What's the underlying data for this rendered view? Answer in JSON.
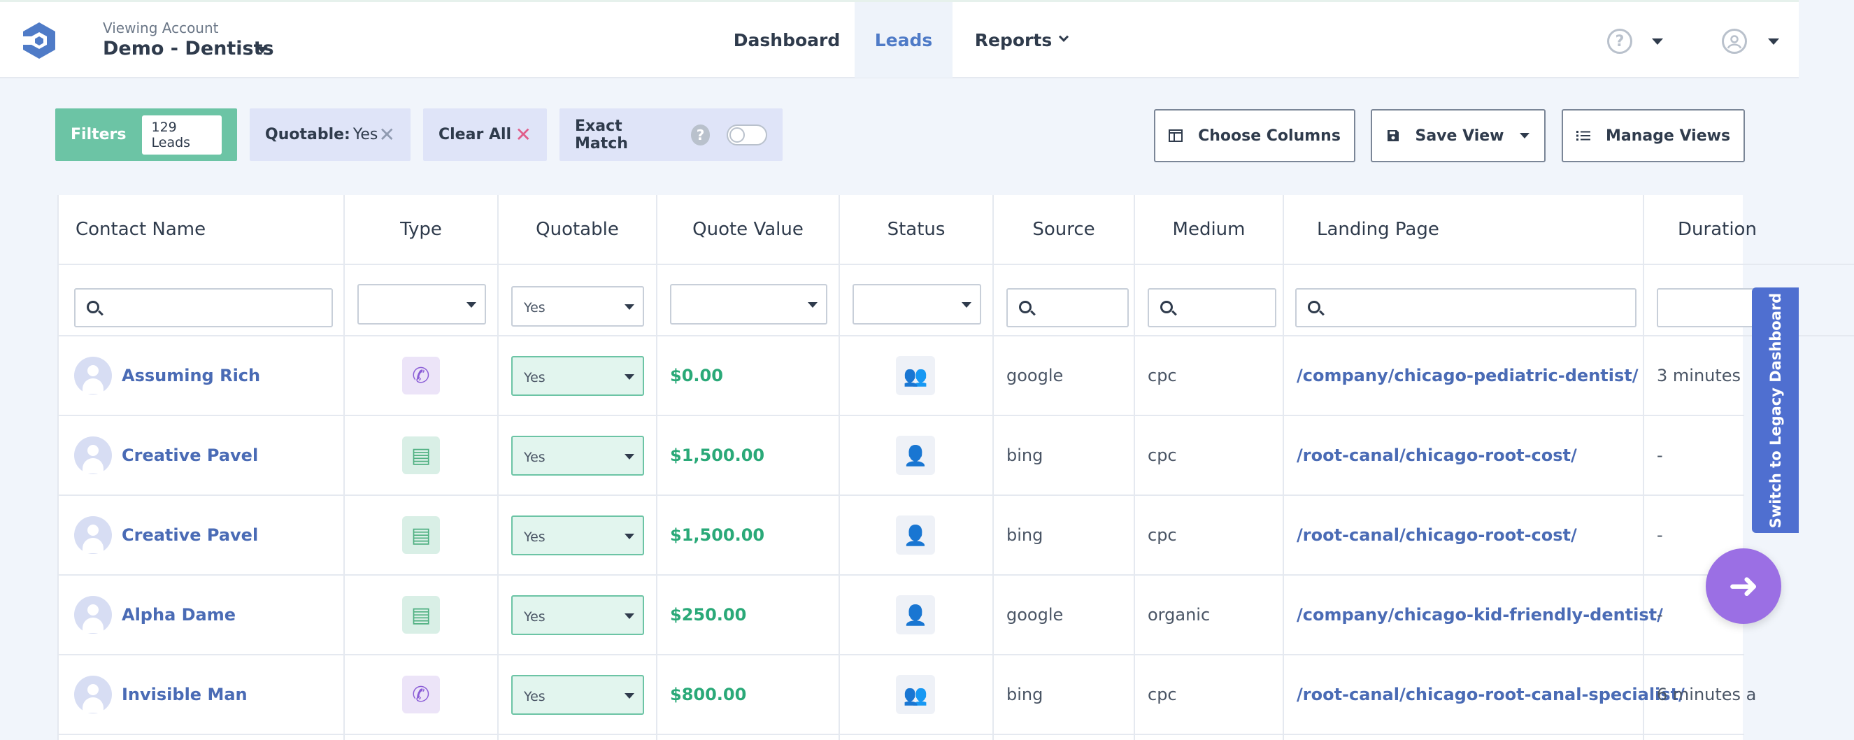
{
  "header": {
    "account_caption": "Viewing Account",
    "account_name": "Demo - Dentists",
    "nav": {
      "dashboard": "Dashboard",
      "leads": "Leads",
      "reports": "Reports"
    },
    "help_icon": "?",
    "user_icon": "user-circle"
  },
  "filters": {
    "label": "Filters",
    "lead_count": "129 Leads",
    "quotable_key": "Quotable:",
    "quotable_value": "Yes",
    "clear_all": "Clear All",
    "exact_match": "Exact Match",
    "exact_match_on": false,
    "remove_icon": "✕"
  },
  "toolbar": {
    "choose_columns": "Choose Columns",
    "save_view": "Save View",
    "manage_views": "Manage Views"
  },
  "table": {
    "headers": {
      "contact_name": "Contact Name",
      "type": "Type",
      "quotable": "Quotable",
      "quote_value": "Quote Value",
      "status": "Status",
      "source": "Source",
      "medium": "Medium",
      "landing_page": "Landing Page",
      "duration": "Duration"
    },
    "filter_quotable_value": "Yes",
    "rows": [
      {
        "name": "Assuming Rich",
        "type": "call-icon",
        "quotable": "Yes",
        "quote_value": "$0.00",
        "status": "users-icon",
        "source": "google",
        "medium": "cpc",
        "landing_page": "/company/chicago-pediatric-dentist/",
        "duration": "3 minutes"
      },
      {
        "name": "Creative Pavel",
        "type": "form-icon",
        "quotable": "Yes",
        "quote_value": "$1,500.00",
        "status": "user-icon",
        "source": "bing",
        "medium": "cpc",
        "landing_page": "/root-canal/chicago-root-cost/",
        "duration": "-"
      },
      {
        "name": "Creative Pavel",
        "type": "form-icon",
        "quotable": "Yes",
        "quote_value": "$1,500.00",
        "status": "user-icon",
        "source": "bing",
        "medium": "cpc",
        "landing_page": "/root-canal/chicago-root-cost/",
        "duration": "-"
      },
      {
        "name": "Alpha Dame",
        "type": "form-icon",
        "quotable": "Yes",
        "quote_value": "$250.00",
        "status": "user-icon",
        "source": "google",
        "medium": "organic",
        "landing_page": "/company/chicago-kid-friendly-dentist/",
        "duration": "-"
      },
      {
        "name": "Invisible Man",
        "type": "call-icon",
        "quotable": "Yes",
        "quote_value": "$800.00",
        "status": "users-icon",
        "source": "bing",
        "medium": "cpc",
        "landing_page": "/root-canal/chicago-root-canal-specialist/",
        "duration": "6 minutes a"
      }
    ]
  },
  "legacy_tab": "Switch to Legacy Dashboard",
  "fab_icon": "arrow-right-icon",
  "colors": {
    "accent": "#4f7bc7",
    "filters_chip": "#6cc4a5",
    "money": "#2aa978",
    "fab": "#9b6fe4",
    "legacy_tab": "#4f6fd0"
  }
}
